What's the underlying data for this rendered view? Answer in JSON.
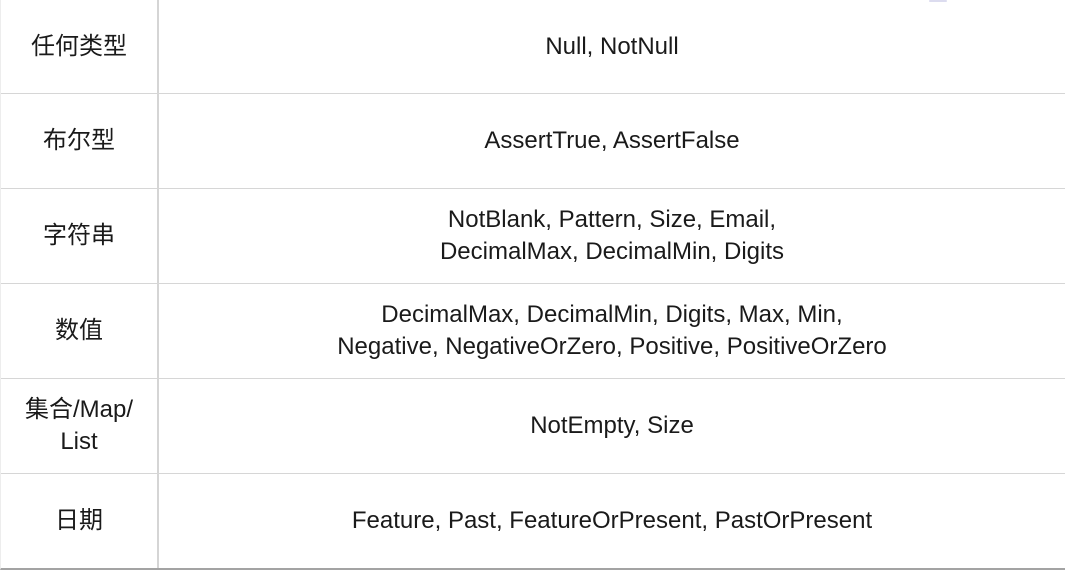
{
  "table": {
    "rows": [
      {
        "type": "任何类型",
        "annotations": "Null, NotNull"
      },
      {
        "type": "布尔型",
        "annotations": "AssertTrue, AssertFalse"
      },
      {
        "type": "字符串",
        "annotations": "NotBlank, Pattern, Size, Email,\nDecimalMax, DecimalMin, Digits"
      },
      {
        "type": "数值",
        "annotations": "DecimalMax, DecimalMin, Digits, Max, Min,\nNegative, NegativeOrZero, Positive, PositiveOrZero"
      },
      {
        "type": "集合/Map/\nList",
        "annotations": "NotEmpty, Size"
      },
      {
        "type": "日期",
        "annotations": "Feature, Past, FeatureOrPresent, PastOrPresent"
      }
    ]
  },
  "colors": {
    "text": "#1a1a1a",
    "grid_line": "#d6d6d6",
    "column_divider": "#d5d5d5",
    "bottom_rule": "#a3a3a3",
    "background": "#ffffff"
  }
}
